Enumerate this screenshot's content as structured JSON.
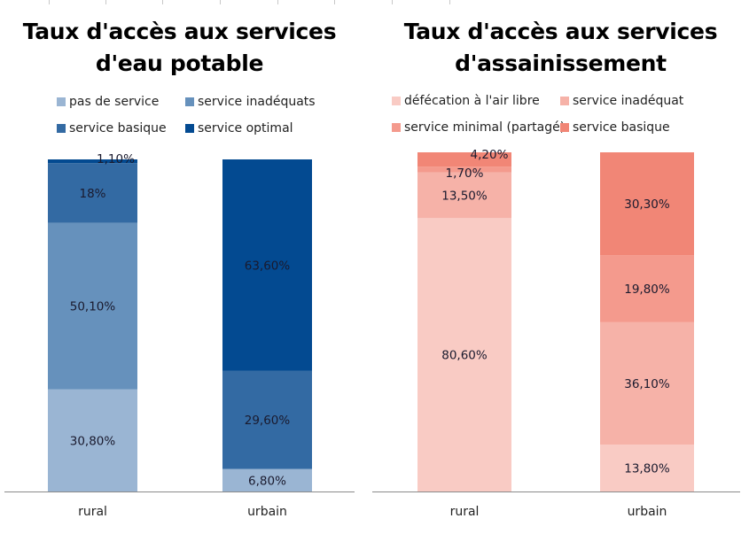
{
  "chart_data": [
    {
      "type": "bar",
      "stacked": true,
      "title": "Taux d'accès aux services d'eau potable",
      "title_lines": [
        "Taux d'accès aux services",
        "d'eau potable"
      ],
      "categories": [
        "rural",
        "urbain"
      ],
      "ylim": [
        0,
        100
      ],
      "unit": "%",
      "grid": false,
      "legend_position": "top",
      "series": [
        {
          "name": "pas de service",
          "color": "#9ab5d3",
          "values": [
            30.8,
            6.8
          ],
          "labels": [
            "30,80%",
            "6,80%"
          ]
        },
        {
          "name": "service inadéquats",
          "color": "#6691bc",
          "values": [
            50.1,
            0
          ],
          "labels": [
            "50,10%",
            ""
          ]
        },
        {
          "name": "service basique",
          "color": "#336aa3",
          "values": [
            18.0,
            29.6
          ],
          "labels": [
            "18%",
            "29,60%"
          ]
        },
        {
          "name": "service optimal",
          "color": "#034a91",
          "values": [
            1.1,
            63.6
          ],
          "labels": [
            "1,10%",
            "63,60%"
          ]
        }
      ]
    },
    {
      "type": "bar",
      "stacked": true,
      "title": "Taux d'accès aux services d'assainissement",
      "title_lines": [
        "Taux d'accès aux services",
        "d'assainissement"
      ],
      "categories": [
        "rural",
        "urbain"
      ],
      "ylim": [
        0,
        100
      ],
      "unit": "%",
      "grid": false,
      "legend_position": "top",
      "series": [
        {
          "name": "défécation à l'air libre",
          "color": "#f9cbc4",
          "values": [
            80.6,
            13.8
          ],
          "labels": [
            "80,60%",
            "13,80%"
          ]
        },
        {
          "name": "service inadéquat",
          "color": "#f6b2a8",
          "values": [
            13.5,
            36.1
          ],
          "labels": [
            "13,50%",
            "36,10%"
          ]
        },
        {
          "name": "service minimal (partagé)",
          "color": "#f49a8d",
          "values": [
            1.7,
            19.8
          ],
          "labels": [
            "1,70%",
            "19,80%"
          ]
        },
        {
          "name": "service basique",
          "color": "#f18676",
          "values": [
            4.2,
            30.3
          ],
          "labels": [
            "4,20%",
            "30,30%"
          ]
        }
      ]
    }
  ]
}
